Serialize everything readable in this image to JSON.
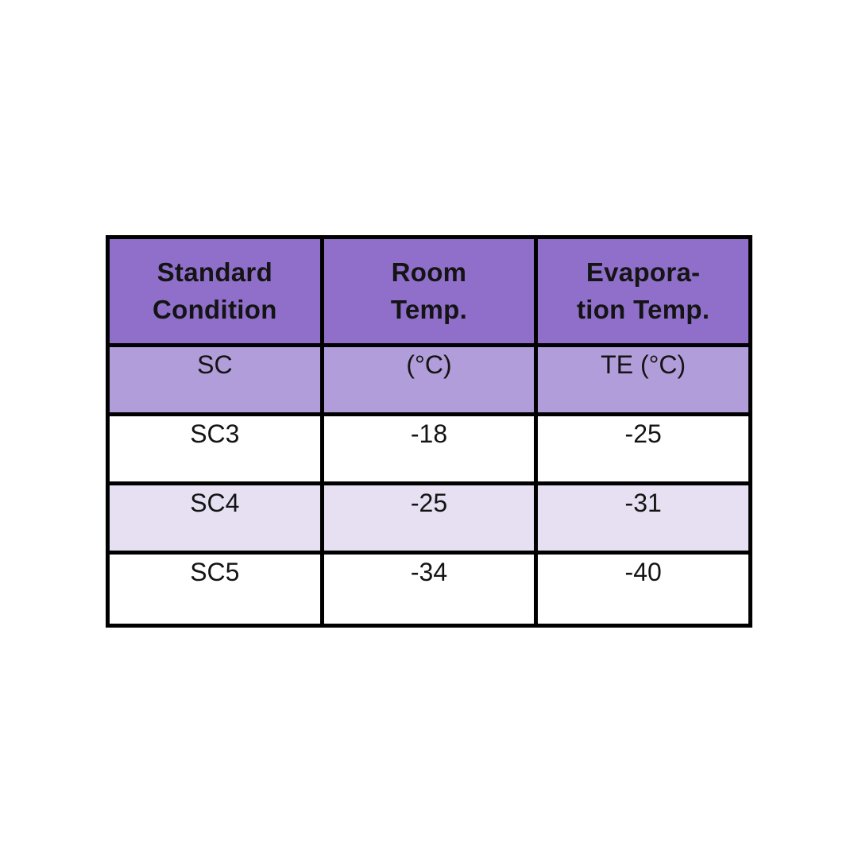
{
  "page": {
    "background": "#ffffff"
  },
  "colors": {
    "header_bg": "#8f6fc9",
    "subheader_bg": "#b29ddb",
    "row_even_bg": "#ffffff",
    "row_odd_bg": "#e7e0f2",
    "border": "#000000",
    "text": "#141414"
  },
  "table": {
    "header": [
      {
        "line1": "Standard",
        "line2": "Condition"
      },
      {
        "line1": "Room",
        "line2": "Temp."
      },
      {
        "line1": "Evapora-",
        "line2": "tion Temp."
      }
    ],
    "subheader": [
      "SC",
      "(°C)",
      "TE (°C)"
    ],
    "rows": [
      [
        "SC3",
        "-18",
        "-25"
      ],
      [
        "SC4",
        "-25",
        "-31"
      ],
      [
        "SC5",
        "-34",
        "-40"
      ]
    ]
  },
  "chart_data": {
    "type": "table",
    "title": "",
    "columns": [
      "Standard Condition (SC)",
      "Room Temp. (°C)",
      "Evaporation Temp. TE (°C)"
    ],
    "rows": [
      {
        "standard_condition": "SC3",
        "room_temp_c": -18,
        "evaporation_temp_c": -25
      },
      {
        "standard_condition": "SC4",
        "room_temp_c": -25,
        "evaporation_temp_c": -31
      },
      {
        "standard_condition": "SC5",
        "room_temp_c": -34,
        "evaporation_temp_c": -40
      }
    ]
  }
}
